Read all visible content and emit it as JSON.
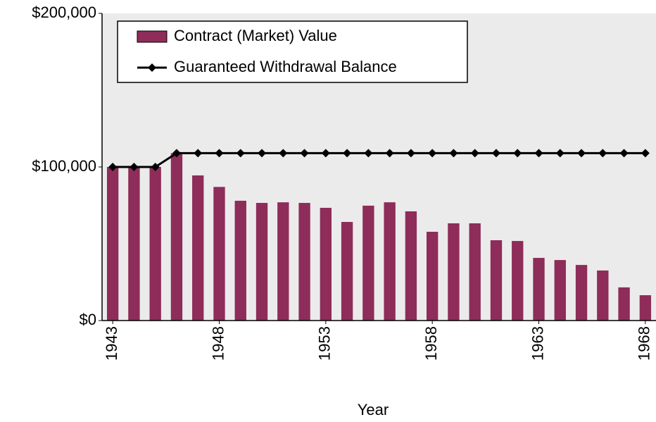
{
  "chart_data": {
    "type": "bar-line",
    "x": [
      1943,
      1944,
      1945,
      1946,
      1947,
      1948,
      1949,
      1950,
      1951,
      1952,
      1953,
      1954,
      1955,
      1956,
      1957,
      1958,
      1959,
      1960,
      1961,
      1962,
      1963,
      1964,
      1965,
      1966,
      1967,
      1968
    ],
    "series": [
      {
        "name": "Contract (Market) Value",
        "type": "bar",
        "color": "#8e2c5a",
        "values": [
          100000,
          100000,
          100000,
          109000,
          94500,
          87000,
          78000,
          76600,
          77000,
          76600,
          73400,
          64200,
          74800,
          77000,
          71100,
          57800,
          63300,
          63300,
          52300,
          51800,
          40800,
          39400,
          36200,
          32600,
          21600,
          16500
        ]
      },
      {
        "name": "Guaranteed Withdrawal Balance",
        "type": "line",
        "color": "#000000",
        "values": [
          100000,
          100000,
          100000,
          109000,
          109000,
          109000,
          109000,
          109000,
          109000,
          109000,
          109000,
          109000,
          109000,
          109000,
          109000,
          109000,
          109000,
          109000,
          109000,
          109000,
          109000,
          109000,
          109000,
          109000,
          109000,
          109000
        ]
      }
    ],
    "xlabel": "Year",
    "xlim": [
      1942.5,
      1968.5
    ],
    "xticks": [
      1943,
      1948,
      1953,
      1958,
      1963,
      1968
    ],
    "ylim": [
      0,
      200000
    ],
    "yticks": [
      {
        "value": 0,
        "label": "$0"
      },
      {
        "value": 100000,
        "label": "$100,000"
      },
      {
        "value": 200000,
        "label": "$200,000"
      }
    ],
    "legend": "upper left",
    "background": "#ebebeb"
  }
}
